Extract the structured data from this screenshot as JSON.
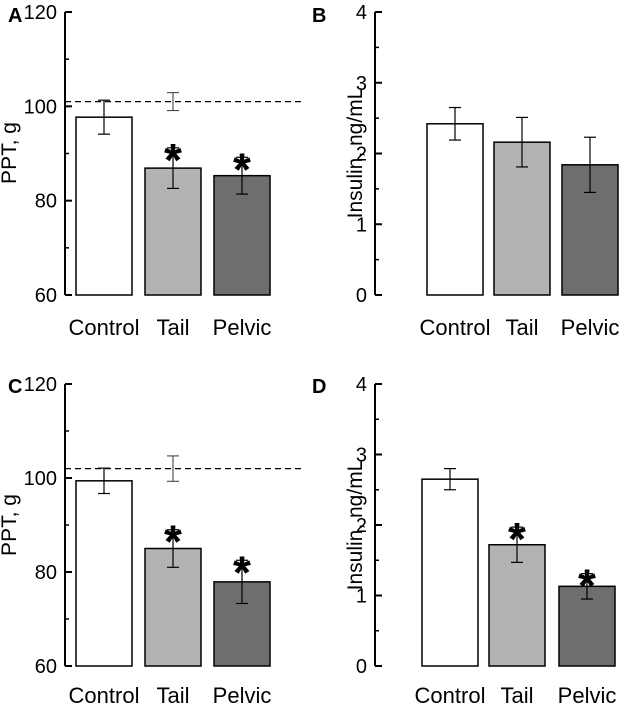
{
  "chart_data": [
    {
      "panel": "A",
      "type": "bar",
      "categories": [
        "Control",
        "Tail",
        "Pelvic"
      ],
      "values": [
        97.7,
        86.9,
        85.3
      ],
      "errors": [
        3.6,
        4.3,
        3.9
      ],
      "significance": [
        "",
        "*",
        "*"
      ],
      "fill_colors": [
        "#ffffff",
        "#b3b3b3",
        "#6e6e6e"
      ],
      "ylabel": "PPT, g",
      "ylim": [
        60,
        120
      ],
      "yticks": [
        "60",
        "80",
        "100",
        "120"
      ],
      "reference_line": {
        "value": 101.0,
        "error": 1.9,
        "style": "dashed"
      }
    },
    {
      "panel": "B",
      "type": "bar",
      "categories": [
        "Control",
        "Tail",
        "Pelvic"
      ],
      "values": [
        2.42,
        2.16,
        1.84
      ],
      "errors": [
        0.23,
        0.35,
        0.39
      ],
      "significance": [
        "",
        "",
        ""
      ],
      "fill_colors": [
        "#ffffff",
        "#b3b3b3",
        "#6e6e6e"
      ],
      "ylabel": "Insulin, ng/mL",
      "ylim": [
        0,
        4
      ],
      "yticks": [
        "0",
        "1",
        "2",
        "3",
        "4"
      ],
      "reference_line": null
    },
    {
      "panel": "C",
      "type": "bar",
      "categories": [
        "Control",
        "Tail",
        "Pelvic"
      ],
      "values": [
        99.4,
        85.0,
        77.9
      ],
      "errors": [
        2.7,
        4.0,
        4.6
      ],
      "significance": [
        "",
        "*",
        "*"
      ],
      "fill_colors": [
        "#ffffff",
        "#b3b3b3",
        "#6e6e6e"
      ],
      "ylabel": "PPT, g",
      "ylim": [
        60,
        120
      ],
      "yticks": [
        "60",
        "80",
        "100",
        "120"
      ],
      "reference_line": {
        "value": 102.0,
        "error": 2.7,
        "style": "dashed"
      }
    },
    {
      "panel": "D",
      "type": "bar",
      "categories": [
        "Control",
        "Tail",
        "Pelvic"
      ],
      "values": [
        2.65,
        1.72,
        1.13
      ],
      "errors": [
        0.15,
        0.25,
        0.18
      ],
      "significance": [
        "",
        "*",
        "*"
      ],
      "fill_colors": [
        "#ffffff",
        "#b3b3b3",
        "#6e6e6e"
      ],
      "ylabel": "Insulin, ng/mL",
      "ylim": [
        0,
        4
      ],
      "yticks": [
        "0",
        "1",
        "2",
        "3",
        "4"
      ],
      "reference_line": null
    }
  ]
}
